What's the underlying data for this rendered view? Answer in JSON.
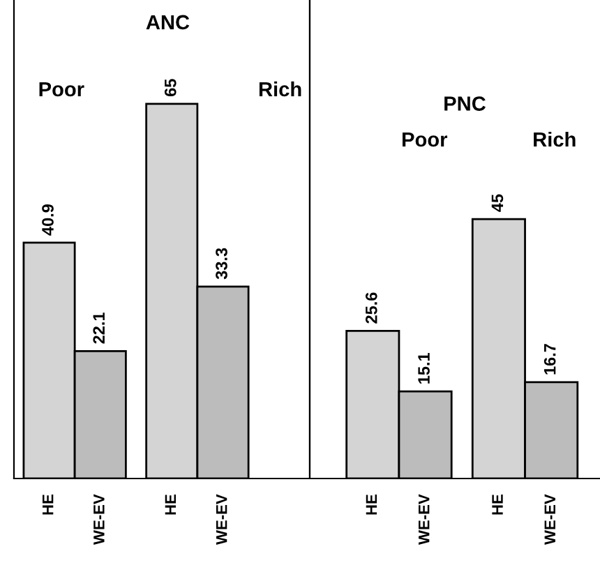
{
  "chart_data": [
    {
      "type": "bar",
      "title": "ANC",
      "categories": [
        "HE",
        "WE-EV",
        "HE",
        "WE-EV"
      ],
      "values": [
        40.9,
        22.1,
        65,
        33.3
      ],
      "colors": [
        "#d4d4d4",
        "#bcbcbc",
        "#d4d4d4",
        "#bcbcbc"
      ],
      "ylim": [
        0,
        83
      ],
      "data_labels": true,
      "annotations": [
        "Poor",
        "Rich"
      ]
    },
    {
      "type": "bar",
      "title": "PNC",
      "categories": [
        "HE",
        "WE-EV",
        "HE",
        "WE-EV"
      ],
      "values": [
        25.6,
        15.1,
        45,
        16.7
      ],
      "colors": [
        "#d4d4d4",
        "#bcbcbc",
        "#d4d4d4",
        "#bcbcbc"
      ],
      "ylim": [
        0,
        83
      ],
      "data_labels": true,
      "annotations": [
        "Poor",
        "Rich"
      ]
    }
  ]
}
